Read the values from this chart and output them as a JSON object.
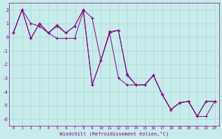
{
  "xlabel": "Windchill (Refroidissement éolien,°C)",
  "background_color": "#c8ecec",
  "grid_color": "#aad4d4",
  "line_color": "#800080",
  "xlim": [
    -0.5,
    23.5
  ],
  "ylim": [
    -6.5,
    2.5
  ],
  "yticks": [
    -6,
    -5,
    -4,
    -3,
    -2,
    -1,
    0,
    1,
    2
  ],
  "xticks": [
    0,
    1,
    2,
    3,
    4,
    5,
    6,
    7,
    8,
    9,
    10,
    11,
    12,
    13,
    14,
    15,
    16,
    17,
    18,
    19,
    20,
    21,
    22,
    23
  ],
  "s1": [
    0.3,
    2.0,
    1.0,
    0.8,
    0.3,
    0.8,
    0.3,
    0.8,
    2.0,
    -3.5,
    -1.7,
    0.3,
    0.5,
    -2.7,
    -3.5,
    -3.5,
    -2.8,
    -4.2,
    -5.3,
    -4.8,
    -4.7,
    -5.8,
    -4.7,
    -4.7
  ],
  "s2": [
    0.3,
    2.0,
    -0.1,
    1.0,
    0.3,
    -0.1,
    -0.1,
    -0.1,
    1.9,
    -3.5,
    -1.7,
    0.3,
    -3.0,
    -3.5,
    -3.5,
    -3.5,
    -2.8,
    -4.2,
    -5.3,
    -4.8,
    -4.7,
    -5.8,
    -4.7,
    -4.7
  ],
  "s3": [
    0.3,
    2.0,
    -0.1,
    1.0,
    0.3,
    0.9,
    0.3,
    0.8,
    2.0,
    1.4,
    -1.7,
    0.4,
    0.5,
    -2.8,
    -3.5,
    -3.5,
    -2.8,
    -4.2,
    -5.3,
    -4.8,
    -4.7,
    -5.8,
    -5.8,
    -4.7
  ]
}
